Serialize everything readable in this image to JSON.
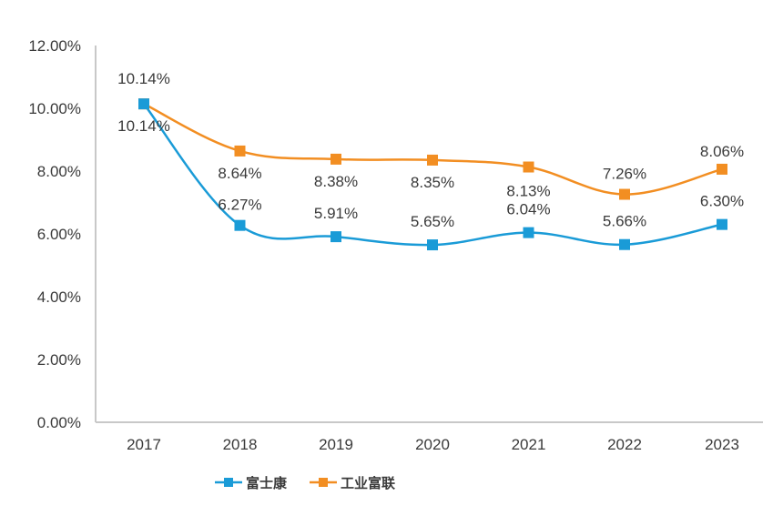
{
  "chart_data": {
    "type": "line",
    "title": "",
    "xlabel": "",
    "ylabel": "",
    "categories": [
      "2017",
      "2018",
      "2019",
      "2020",
      "2021",
      "2022",
      "2023"
    ],
    "ylim": [
      0,
      12
    ],
    "yticks": [
      "0.00%",
      "2.00%",
      "4.00%",
      "6.00%",
      "8.00%",
      "10.00%",
      "12.00%"
    ],
    "grid": false,
    "legend": "bottom",
    "series": [
      {
        "name": "富士康",
        "color": "#1a9bd7",
        "values": [
          10.14,
          6.27,
          5.91,
          5.65,
          6.04,
          5.66,
          6.3
        ],
        "labels": [
          "10.14%",
          "6.27%",
          "5.91%",
          "5.65%",
          "6.04%",
          "5.66%",
          "6.30%"
        ]
      },
      {
        "name": "工业富联",
        "color": "#f28e22",
        "values": [
          10.14,
          8.64,
          8.38,
          8.35,
          8.13,
          7.26,
          8.06
        ],
        "labels": [
          "10.14%",
          "8.64%",
          "8.38%",
          "8.35%",
          "8.13%",
          "7.26%",
          "8.06%"
        ]
      }
    ]
  }
}
